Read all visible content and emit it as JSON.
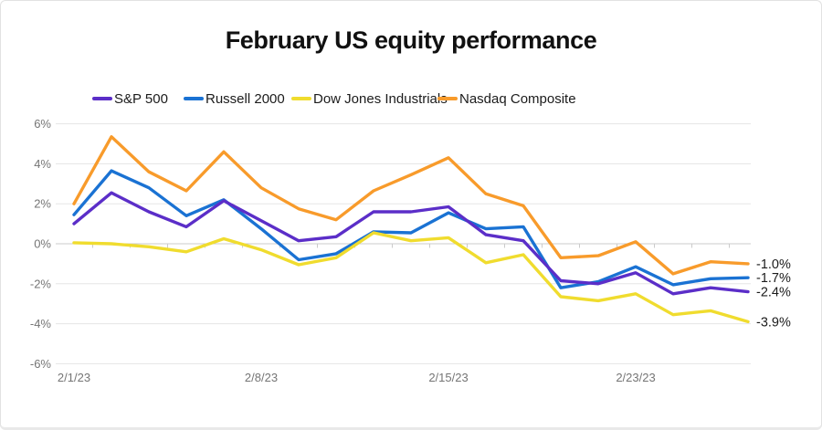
{
  "card": {
    "title": "February US equity performance"
  },
  "legend": {
    "items": [
      {
        "label": "S&P 500",
        "color": "#5B2EC8"
      },
      {
        "label": "Russell 2000",
        "color": "#1A72D3"
      },
      {
        "label": "Dow Jones Industrials",
        "color": "#F0DC2E"
      },
      {
        "label": "Nasdaq Composite",
        "color": "#F89B2B"
      }
    ]
  },
  "chart_data": {
    "type": "line",
    "title": "February US equity performance",
    "x": [
      "2/1/23",
      "2/2/23",
      "2/3/23",
      "2/6/23",
      "2/7/23",
      "2/8/23",
      "2/9/23",
      "2/10/23",
      "2/13/23",
      "2/14/23",
      "2/15/23",
      "2/16/23",
      "2/17/23",
      "2/21/23",
      "2/22/23",
      "2/23/23",
      "2/24/23",
      "2/27/23",
      "2/28/23"
    ],
    "x_tick_labels": [
      {
        "label": "2/1/23",
        "index": 0
      },
      {
        "label": "2/8/23",
        "index": 5
      },
      {
        "label": "2/15/23",
        "index": 10
      },
      {
        "label": "2/23/23",
        "index": 15
      }
    ],
    "y_ticks": [
      {
        "label": "6%",
        "value": 6
      },
      {
        "label": "4%",
        "value": 4
      },
      {
        "label": "2%",
        "value": 2
      },
      {
        "label": "0%",
        "value": 0
      },
      {
        "label": "-2%",
        "value": -2
      },
      {
        "label": "-4%",
        "value": -4
      },
      {
        "label": "-6%",
        "value": -6
      }
    ],
    "ylim": [
      -6,
      6
    ],
    "ylabel": "",
    "xlabel": "",
    "grid": "horizontal",
    "legend_position": "top",
    "series": [
      {
        "name": "S&P 500",
        "color": "#5B2EC8",
        "end_label": "-2.4%",
        "values": [
          1.0,
          2.55,
          1.6,
          0.85,
          2.15,
          1.15,
          0.15,
          0.35,
          1.6,
          1.6,
          1.85,
          0.45,
          0.15,
          -1.85,
          -2.0,
          -1.45,
          -2.5,
          -2.2,
          -2.4
        ]
      },
      {
        "name": "Russell 2000",
        "color": "#1A72D3",
        "end_label": "-1.7%",
        "values": [
          1.45,
          3.65,
          2.8,
          1.4,
          2.2,
          0.75,
          -0.8,
          -0.5,
          0.6,
          0.55,
          1.55,
          0.75,
          0.85,
          -2.2,
          -1.9,
          -1.15,
          -2.05,
          -1.75,
          -1.7
        ]
      },
      {
        "name": "Dow Jones Industrials",
        "color": "#F0DC2E",
        "end_label": "-3.9%",
        "values": [
          0.05,
          0.0,
          -0.15,
          -0.4,
          0.25,
          -0.3,
          -1.05,
          -0.7,
          0.55,
          0.15,
          0.3,
          -0.95,
          -0.55,
          -2.65,
          -2.85,
          -2.5,
          -3.55,
          -3.35,
          -3.9
        ]
      },
      {
        "name": "Nasdaq Composite",
        "color": "#F89B2B",
        "end_label": "-1.0%",
        "values": [
          2.0,
          5.35,
          3.6,
          2.65,
          4.6,
          2.8,
          1.75,
          1.2,
          2.65,
          3.45,
          4.3,
          2.5,
          1.9,
          -0.7,
          -0.6,
          0.1,
          -1.5,
          -0.9,
          -1.0
        ]
      }
    ]
  }
}
